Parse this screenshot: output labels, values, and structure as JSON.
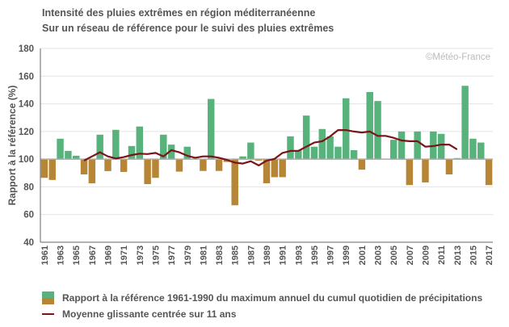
{
  "chart_data": {
    "type": "bar",
    "title": "Intensité des pluies extrêmes en région méditerranéenne",
    "subtitle": "Sur un réseau de référence pour le suivi des pluies extrêmes",
    "xlabel": "",
    "ylabel": "Rapport à la référence (%)",
    "ylim": [
      40,
      180
    ],
    "yticks": [
      40,
      60,
      80,
      100,
      120,
      140,
      160,
      180
    ],
    "baseline": 100,
    "grid": true,
    "credit": "©Météo-France",
    "colors": {
      "above": "#57b27c",
      "below": "#b68535",
      "line": "#7a1419"
    },
    "years": [
      1961,
      1962,
      1963,
      1964,
      1965,
      1966,
      1967,
      1968,
      1969,
      1970,
      1971,
      1972,
      1973,
      1974,
      1975,
      1976,
      1977,
      1978,
      1979,
      1980,
      1981,
      1982,
      1983,
      1984,
      1985,
      1986,
      1987,
      1988,
      1989,
      1990,
      1991,
      1992,
      1993,
      1994,
      1995,
      1996,
      1997,
      1998,
      1999,
      2000,
      2001,
      2002,
      2003,
      2004,
      2005,
      2006,
      2007,
      2008,
      2009,
      2010,
      2011,
      2012,
      2013,
      2014,
      2015,
      2016,
      2017
    ],
    "xtick_labels": [
      "1961",
      "1963",
      "1965",
      "1967",
      "1969",
      "1971",
      "1973",
      "1975",
      "1977",
      "1979",
      "1981",
      "1983",
      "1985",
      "1987",
      "1989",
      "1991",
      "1993",
      "1995",
      "1997",
      "1999",
      "2001",
      "2003",
      "2005",
      "2007",
      "2009",
      "2011",
      "2013",
      "2015",
      "2017"
    ],
    "series": [
      {
        "name": "Rapport à la référence 1961-1990 du maximum annuel du cumul quotidien de précipitations",
        "type": "bar",
        "values": [
          86.5,
          85,
          114.8,
          106,
          102.5,
          89,
          82.6,
          117.7,
          91.4,
          121.2,
          90.8,
          109.5,
          123.6,
          82,
          86.5,
          117.7,
          110.5,
          91,
          109,
          100.5,
          91.5,
          143.5,
          91.5,
          98,
          66.7,
          102,
          112,
          99,
          82.6,
          87,
          87,
          116.5,
          106.5,
          131.5,
          109,
          121.8,
          116.5,
          109,
          144,
          106.5,
          92.4,
          148.5,
          142,
          100,
          114,
          120,
          81.3,
          120,
          83.2,
          120,
          118.3,
          89,
          100.8,
          153,
          114.8,
          112,
          81.3
        ]
      },
      {
        "name": "Moyenne glissante centrée sur 11 ans",
        "type": "line",
        "start_year": 1966,
        "values": [
          99,
          102,
          105,
          102,
          100.5,
          101.5,
          103,
          104,
          103.7,
          104.5,
          102,
          106.5,
          105,
          102.5,
          101,
          102,
          102,
          101,
          99.5,
          97.5,
          96.8,
          98.5,
          95.5,
          99,
          100.2,
          104.5,
          106,
          106,
          109,
          112,
          113,
          116.5,
          121,
          121,
          120,
          119.3,
          120,
          116.8,
          116.8,
          115.4,
          113.5,
          113,
          113,
          109,
          109.5,
          110.5,
          110.5,
          107
        ]
      }
    ]
  },
  "legend": [
    {
      "label": "Rapport à la référence 1961-1990 du maximum annuel du cumul quotidien de précipitations",
      "kind": "bar"
    },
    {
      "label": "Moyenne glissante centrée sur 11 ans",
      "kind": "line"
    }
  ]
}
